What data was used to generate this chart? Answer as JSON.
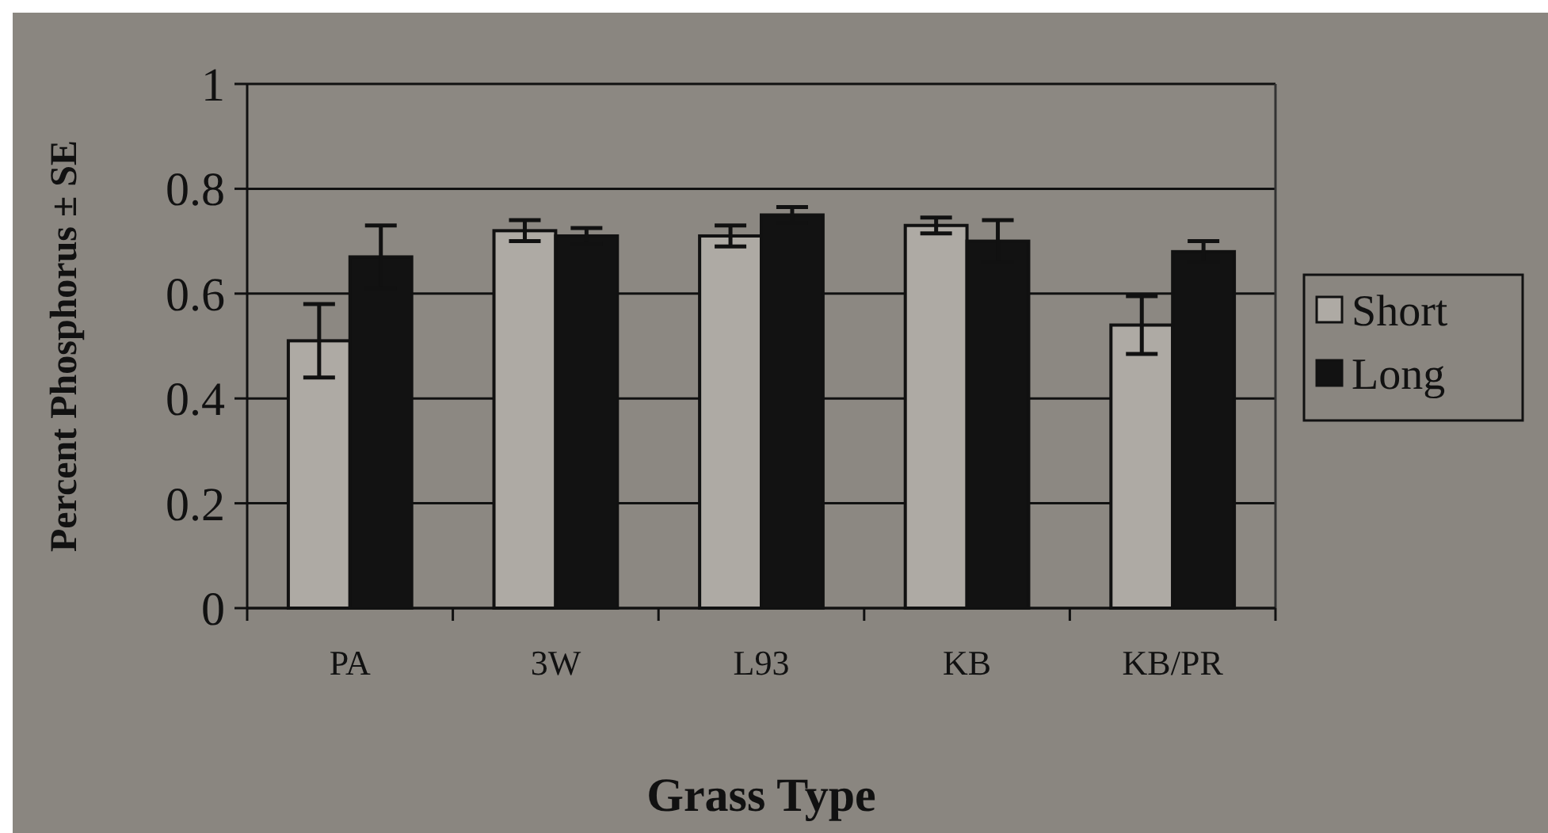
{
  "chart_data": {
    "type": "bar",
    "xlabel": "Grass Type",
    "ylabel": "Percent Phosphorus ± SE",
    "categories": [
      "PA",
      "3W",
      "L93",
      "KB",
      "KB/PR"
    ],
    "series": [
      {
        "name": "Short",
        "color": "#aeaaa4",
        "values": [
          0.51,
          0.72,
          0.71,
          0.73,
          0.54
        ],
        "errors": [
          0.07,
          0.02,
          0.02,
          0.015,
          0.055
        ]
      },
      {
        "name": "Long",
        "color": "#121212",
        "values": [
          0.67,
          0.71,
          0.75,
          0.7,
          0.68
        ],
        "errors": [
          0.06,
          0.015,
          0.015,
          0.04,
          0.02
        ]
      }
    ],
    "ylim": [
      0,
      1
    ],
    "yticks": [
      0,
      0.2,
      0.4,
      0.6,
      0.8,
      1
    ],
    "grid": "y",
    "legend": "right"
  }
}
